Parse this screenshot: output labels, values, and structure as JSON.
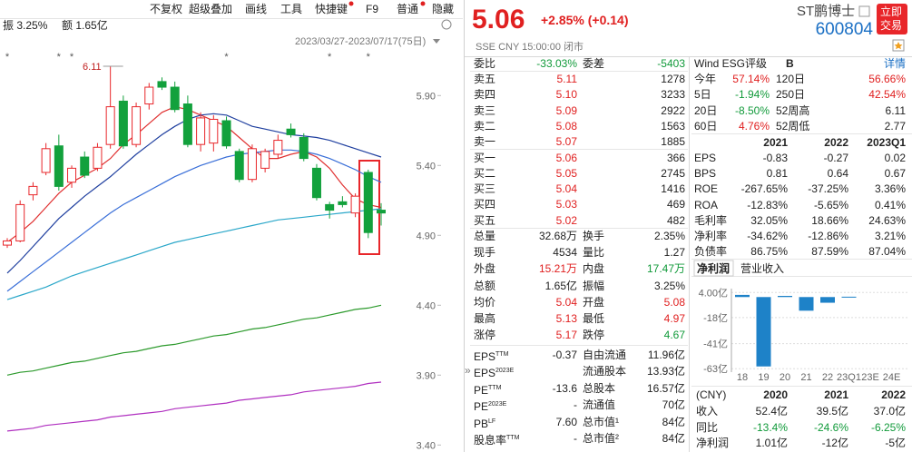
{
  "toolbar": [
    "不复权",
    "超级叠加",
    "画线",
    "工具",
    "快捷键",
    "F9",
    "普通",
    "隐藏"
  ],
  "summary": {
    "amplitude": "振 3.25%",
    "amount": "额 1.65亿"
  },
  "date_range": "2023/03/27-2023/07/17(75日)",
  "quote": {
    "price": "5.06",
    "change": "+2.85% (+0.14)",
    "meta": "SSE  CNY  15:00:00  闭市",
    "name": "ST鹏博士",
    "code": "600804",
    "trade_button": [
      "立即",
      "交易"
    ]
  },
  "order_book": {
    "ratio": [
      "委比",
      "-33.03%",
      "委差",
      "-5403"
    ],
    "levels": [
      [
        "卖五",
        "5.11",
        "1278"
      ],
      [
        "卖四",
        "5.10",
        "3233"
      ],
      [
        "卖三",
        "5.09",
        "2922"
      ],
      [
        "卖二",
        "5.08",
        "1563"
      ],
      [
        "卖一",
        "5.07",
        "1885"
      ],
      [
        "买一",
        "5.06",
        "366"
      ],
      [
        "买二",
        "5.05",
        "2745"
      ],
      [
        "买三",
        "5.04",
        "1416"
      ],
      [
        "买四",
        "5.03",
        "469"
      ],
      [
        "买五",
        "5.02",
        "482"
      ]
    ],
    "stats": [
      [
        "总量",
        "32.68万",
        "换手",
        "2.35%"
      ],
      [
        "现手",
        "4534",
        "量比",
        "1.27"
      ],
      [
        "外盘",
        "15.21万",
        "内盘",
        "17.47万"
      ],
      [
        "总额",
        "1.65亿",
        "振幅",
        "3.25%"
      ],
      [
        "均价",
        "5.04",
        "开盘",
        "5.08"
      ],
      [
        "最高",
        "5.13",
        "最低",
        "4.97"
      ],
      [
        "涨停",
        "5.17",
        "跌停",
        "4.67"
      ]
    ],
    "fundamentals": [
      {
        "label": "EPS",
        "sup": "TTM",
        "value": "-0.37",
        "label2": "自由流通",
        "value2": "11.96亿"
      },
      {
        "label": "EPS",
        "sup": "2023E",
        "label2": "流通股本",
        "value2": "13.93亿"
      },
      {
        "label": "PE",
        "sup": "TTM",
        "value": "-13.6",
        "label2": "总股本",
        "value2": "16.57亿"
      },
      {
        "label": "PE",
        "sup": "2023E",
        "value": "-",
        "label2": "流通值",
        "value2": "70亿"
      },
      {
        "label": "PB",
        "sup": "LF",
        "value": "7.60",
        "label2": "总市值¹",
        "value2": "84亿"
      },
      {
        "label": "股息率",
        "sup": "TTM",
        "value": "-",
        "label2": "总市值²",
        "value2": "84亿"
      }
    ]
  },
  "panel_toggle": "»",
  "profile": {
    "esg": [
      "Wind ESG评级",
      "B",
      "详情"
    ],
    "performance": [
      [
        "今年",
        "57.14%",
        "120日",
        "56.66%"
      ],
      [
        "5日",
        "-1.94%",
        "250日",
        "42.54%"
      ],
      [
        "20日",
        "-8.50%",
        "52周高",
        "6.11"
      ],
      [
        "60日",
        "4.76%",
        "52周低",
        "2.77"
      ]
    ],
    "fin_header": [
      "2021",
      "2022",
      "2023Q1"
    ],
    "fin_rows": [
      [
        "EPS",
        "-0.83",
        "-0.27",
        "0.02"
      ],
      [
        "BPS",
        "0.81",
        "0.64",
        "0.67"
      ],
      [
        "ROE",
        "-267.65%",
        "-37.25%",
        "3.36%"
      ],
      [
        "ROA",
        "-12.83%",
        "-5.65%",
        "0.41%"
      ],
      [
        "毛利率",
        "32.05%",
        "18.66%",
        "24.63%"
      ],
      [
        "净利率",
        "-34.62%",
        "-12.86%",
        "3.21%"
      ],
      [
        "负债率",
        "86.75%",
        "87.59%",
        "87.04%"
      ]
    ]
  },
  "finance_tabs": [
    "净利润",
    "营业收入"
  ],
  "income_table": {
    "header": [
      "(CNY)",
      "2020",
      "2021",
      "2022"
    ],
    "rows": [
      [
        "收入",
        "52.4亿",
        "39.5亿",
        "37.0亿"
      ],
      [
        "同比",
        "-13.4%",
        "-24.6%",
        "-6.25%"
      ],
      [
        "净利润",
        "1.01亿",
        "-12亿",
        "-5亿"
      ]
    ]
  },
  "chart_data": [
    {
      "type": "candlestick",
      "up_color": "#e8262a",
      "down_color": "#12a13c",
      "open": [
        4.83,
        4.86,
        5.19,
        5.35,
        5.54,
        5.28,
        5.46,
        5.38,
        5.55,
        5.86,
        5.55,
        5.84,
        6.0,
        5.96,
        5.84,
        5.55,
        5.56,
        5.72,
        5.5,
        5.3,
        5.38,
        5.48,
        5.66,
        5.6,
        5.38,
        5.12,
        5.14,
        5.06,
        5.35,
        5.08
      ],
      "high": [
        4.88,
        5.15,
        5.28,
        5.56,
        5.62,
        5.4,
        5.5,
        5.56,
        6.11,
        5.9,
        5.85,
        5.99,
        6.03,
        6.0,
        5.9,
        5.78,
        5.76,
        5.75,
        5.52,
        5.55,
        5.52,
        5.62,
        5.7,
        5.63,
        5.41,
        5.14,
        5.18,
        5.2,
        5.37,
        5.13
      ],
      "low": [
        4.81,
        4.85,
        5.15,
        5.33,
        5.22,
        5.24,
        5.31,
        5.36,
        5.52,
        5.52,
        5.53,
        5.8,
        5.94,
        5.78,
        5.53,
        5.5,
        5.5,
        5.52,
        5.28,
        5.28,
        5.35,
        5.45,
        5.6,
        5.43,
        5.15,
        5.02,
        5.1,
        5.03,
        4.88,
        4.97
      ],
      "close": [
        4.86,
        5.12,
        5.25,
        5.52,
        5.25,
        5.38,
        5.33,
        5.53,
        5.82,
        5.54,
        5.82,
        5.96,
        5.96,
        5.8,
        5.55,
        5.74,
        5.73,
        5.54,
        5.3,
        5.52,
        5.5,
        5.58,
        5.62,
        5.45,
        5.17,
        5.08,
        5.12,
        5.18,
        4.92,
        5.06
      ],
      "series": [
        {
          "color": "#e03030",
          "values": [
            4.85,
            4.92,
            5.0,
            5.1,
            5.2,
            5.28,
            5.33,
            5.38,
            5.45,
            5.55,
            5.62,
            5.7,
            5.78,
            5.82,
            5.8,
            5.76,
            5.72,
            5.68,
            5.6,
            5.52,
            5.45,
            5.45,
            5.48,
            5.5,
            5.46,
            5.38,
            5.26,
            5.16,
            5.12,
            5.1
          ]
        },
        {
          "color": "#1f3f9f",
          "values": [
            4.63,
            4.72,
            4.82,
            4.92,
            5.02,
            5.1,
            5.18,
            5.25,
            5.32,
            5.4,
            5.48,
            5.55,
            5.62,
            5.68,
            5.73,
            5.76,
            5.77,
            5.76,
            5.72,
            5.68,
            5.66,
            5.64,
            5.62,
            5.61,
            5.6,
            5.58,
            5.55,
            5.52,
            5.49,
            5.46
          ]
        },
        {
          "color": "#3a6fd8",
          "values": [
            4.5,
            4.57,
            4.64,
            4.71,
            4.78,
            4.85,
            4.92,
            4.99,
            5.06,
            5.12,
            5.17,
            5.22,
            5.27,
            5.32,
            5.36,
            5.4,
            5.43,
            5.46,
            5.48,
            5.49,
            5.5,
            5.51,
            5.51,
            5.5,
            5.48,
            5.45,
            5.41,
            5.37,
            5.32,
            5.28
          ]
        },
        {
          "color": "#2aa7c9",
          "values": [
            4.44,
            4.47,
            4.5,
            4.53,
            4.57,
            4.61,
            4.64,
            4.67,
            4.7,
            4.73,
            4.76,
            4.79,
            4.82,
            4.85,
            4.87,
            4.89,
            4.91,
            4.93,
            4.95,
            4.97,
            4.99,
            5.01,
            5.02,
            5.03,
            5.04,
            5.05,
            5.06,
            5.07,
            5.08,
            5.09
          ]
        },
        {
          "color": "#2c9a2c",
          "values": [
            3.9,
            3.92,
            3.93,
            3.95,
            3.97,
            3.99,
            4.0,
            4.02,
            4.04,
            4.06,
            4.07,
            4.09,
            4.11,
            4.12,
            4.14,
            4.16,
            4.18,
            4.19,
            4.21,
            4.23,
            4.24,
            4.26,
            4.28,
            4.3,
            4.31,
            4.33,
            4.35,
            4.37,
            4.38,
            4.4
          ]
        },
        {
          "color": "#b030c0",
          "values": [
            3.5,
            3.51,
            3.52,
            3.54,
            3.55,
            3.56,
            3.57,
            3.58,
            3.6,
            3.61,
            3.62,
            3.63,
            3.64,
            3.66,
            3.67,
            3.68,
            3.69,
            3.7,
            3.72,
            3.73,
            3.74,
            3.75,
            3.76,
            3.78,
            3.79,
            3.8,
            3.81,
            3.82,
            3.84,
            3.85
          ]
        }
      ],
      "event_marker": "*",
      "event_index": [
        0,
        4,
        5,
        17,
        25,
        28
      ],
      "ylim": [
        3.35,
        6.22
      ],
      "yticks": [
        {
          "value": 5.9,
          "label": "5.90"
        },
        {
          "value": 5.4,
          "label": "5.40"
        },
        {
          "value": 4.9,
          "label": "4.90"
        },
        {
          "value": 4.4,
          "label": "4.40"
        },
        {
          "value": 3.9,
          "label": "3.90"
        },
        {
          "value": 3.4,
          "label": "3.40"
        }
      ],
      "grid": false
    },
    {
      "type": "bar",
      "color": "#1e82c8",
      "categories": [
        "18",
        "19",
        "20",
        "21",
        "22",
        "23Q1",
        "23E",
        "24E"
      ],
      "values": [
        1.9,
        -61,
        1.01,
        -12,
        -5,
        0.3,
        null,
        null
      ],
      "ylim": [
        -66,
        9
      ],
      "yticks": [
        {
          "value": 4,
          "label": "4.00亿"
        },
        {
          "value": -18,
          "label": "-18亿"
        },
        {
          "value": -41,
          "label": "-41亿"
        },
        {
          "value": -63,
          "label": "-63亿"
        }
      ],
      "grid": true
    }
  ]
}
